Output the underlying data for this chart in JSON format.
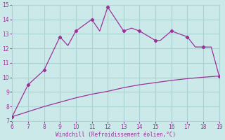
{
  "xlabel": "Windchill (Refroidissement éolien,°C)",
  "xlim": [
    6,
    19
  ],
  "ylim": [
    7,
    15
  ],
  "xticks": [
    6,
    7,
    8,
    9,
    10,
    11,
    12,
    13,
    14,
    15,
    16,
    17,
    18,
    19
  ],
  "yticks": [
    7,
    8,
    9,
    10,
    11,
    12,
    13,
    14,
    15
  ],
  "background_color": "#cce9e9",
  "grid_color": "#aad4d4",
  "line_color": "#993399",
  "curve1_x": [
    6,
    7,
    7.5,
    8,
    9,
    9.5,
    10,
    11,
    11.5,
    12,
    13,
    13.5,
    14,
    15,
    15.3,
    16,
    16.5,
    17,
    17.5,
    18,
    18.5,
    19
  ],
  "curve1_y": [
    7.3,
    9.5,
    10.0,
    10.5,
    12.8,
    12.2,
    13.2,
    14.0,
    13.2,
    14.85,
    13.2,
    13.4,
    13.2,
    12.55,
    12.55,
    13.2,
    13.0,
    12.8,
    12.1,
    12.1,
    12.1,
    10.1
  ],
  "curve1_markers_x": [
    6,
    7,
    8,
    9,
    10,
    11,
    12,
    13,
    14,
    15,
    16,
    17,
    18,
    19
  ],
  "curve1_markers_y": [
    7.3,
    9.5,
    10.5,
    12.8,
    13.2,
    14.0,
    14.85,
    13.2,
    13.2,
    12.55,
    13.2,
    12.8,
    12.1,
    10.1
  ],
  "curve2_x": [
    6,
    7,
    8,
    9,
    10,
    11,
    12,
    13,
    14,
    15,
    16,
    17,
    18,
    19
  ],
  "curve2_y": [
    7.3,
    7.65,
    8.0,
    8.3,
    8.6,
    8.85,
    9.05,
    9.3,
    9.5,
    9.65,
    9.8,
    9.92,
    10.02,
    10.1
  ]
}
